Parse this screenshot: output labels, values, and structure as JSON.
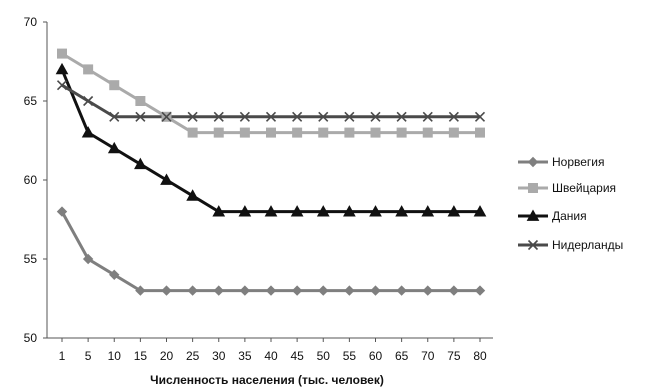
{
  "chart_data": {
    "type": "line",
    "title": "",
    "xlabel": "Численность населения (тыс. человек)",
    "ylabel": "",
    "ylim": [
      50,
      70
    ],
    "yticks": [
      50,
      55,
      60,
      65,
      70
    ],
    "grid": false,
    "legend_position": "right",
    "x": [
      "1",
      "5",
      "10",
      "15",
      "20",
      "25",
      "30",
      "35",
      "40",
      "45",
      "50",
      "55",
      "60",
      "65",
      "70",
      "75",
      "80"
    ],
    "series": [
      {
        "name": "Норвегия",
        "color": "#7f7f7f",
        "marker": "diamond",
        "values": [
          58,
          55,
          54,
          53,
          53,
          53,
          53,
          53,
          53,
          53,
          53,
          53,
          53,
          53,
          53,
          53,
          53
        ]
      },
      {
        "name": "Швейцария",
        "color": "#aaaaaa",
        "marker": "square",
        "values": [
          68,
          67,
          66,
          65,
          64,
          63,
          63,
          63,
          63,
          63,
          63,
          63,
          63,
          63,
          63,
          63,
          63
        ]
      },
      {
        "name": "Дания",
        "color": "#111111",
        "marker": "triangle",
        "values": [
          67,
          63,
          62,
          61,
          60,
          59,
          58,
          58,
          58,
          58,
          58,
          58,
          58,
          58,
          58,
          58,
          58
        ]
      },
      {
        "name": "Нидерланды",
        "color": "#4a4a4a",
        "marker": "x",
        "values": [
          66,
          65,
          64,
          64,
          64,
          64,
          64,
          64,
          64,
          64,
          64,
          64,
          64,
          64,
          64,
          64,
          64
        ]
      }
    ]
  }
}
